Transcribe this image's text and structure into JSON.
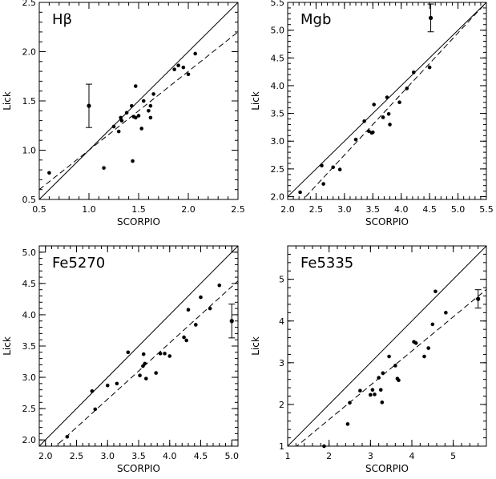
{
  "chart_data": [
    {
      "type": "scatter",
      "panel_label": "Hβ",
      "xlabel": "SCORPIO",
      "ylabel": "Lick",
      "xlim": [
        0.5,
        2.5
      ],
      "ylim": [
        0.5,
        2.5
      ],
      "xticks": [
        "0.5",
        "1.0",
        "1.5",
        "2.0",
        "2.5"
      ],
      "yticks": [
        "0.5",
        "1.0",
        "1.5",
        "2.0",
        "2.5"
      ],
      "x": [
        0.6,
        1.15,
        1.25,
        1.3,
        1.32,
        1.33,
        1.38,
        1.43,
        1.44,
        1.45,
        1.47,
        1.47,
        1.5,
        1.53,
        1.55,
        1.6,
        1.62,
        1.62,
        1.65,
        1.86,
        1.9,
        1.95,
        2.0,
        2.07
      ],
      "y": [
        0.77,
        0.82,
        1.24,
        1.19,
        1.33,
        1.3,
        1.38,
        1.45,
        0.89,
        1.34,
        1.65,
        1.33,
        1.35,
        1.22,
        1.5,
        1.4,
        1.33,
        1.45,
        1.57,
        1.82,
        1.86,
        1.84,
        1.77,
        1.98
      ],
      "error_bar": {
        "x": 1.0,
        "y": 1.45,
        "err": 0.22
      },
      "lines": [
        {
          "style": "solid",
          "slope": 1.0,
          "intercept": 0.0
        },
        {
          "style": "dashed",
          "slope": 0.8,
          "intercept": 0.2
        }
      ]
    },
    {
      "type": "scatter",
      "panel_label": "Mgb",
      "xlabel": "SCORPIO",
      "ylabel": "Lick",
      "xlim": [
        2.0,
        5.5
      ],
      "ylim": [
        1.95,
        5.5
      ],
      "xticks": [
        "2.0",
        "2.5",
        "3.0",
        "3.5",
        "4.0",
        "4.5",
        "5.0",
        "5.5"
      ],
      "yticks": [
        "2.0",
        "2.5",
        "3.0",
        "3.5",
        "4.0",
        "4.5",
        "5.0",
        "5.5"
      ],
      "x": [
        2.22,
        2.6,
        2.63,
        2.8,
        2.92,
        3.2,
        3.35,
        3.43,
        3.48,
        3.5,
        3.52,
        3.68,
        3.75,
        3.78,
        3.8,
        3.97,
        4.1,
        4.22,
        4.5
      ],
      "y": [
        2.08,
        2.56,
        2.23,
        2.53,
        2.49,
        3.03,
        3.36,
        3.18,
        3.15,
        3.16,
        3.66,
        3.43,
        3.79,
        3.49,
        3.3,
        3.7,
        3.95,
        4.24,
        4.33
      ],
      "error_bar": {
        "x": 4.52,
        "y": 5.22,
        "err": 0.25
      },
      "lines": [
        {
          "style": "solid",
          "slope": 1.0,
          "intercept": 0.0
        },
        {
          "style": "dashed",
          "slope": 1.1,
          "intercept": -0.55
        }
      ]
    },
    {
      "type": "scatter",
      "panel_label": "Fe5270",
      "xlabel": "SCORPIO",
      "ylabel": "Lick",
      "xlim": [
        1.9,
        5.1
      ],
      "ylim": [
        1.9,
        5.1
      ],
      "xticks": [
        "2.0",
        "2.5",
        "3.0",
        "3.5",
        "4.0",
        "4.5",
        "5.0"
      ],
      "yticks": [
        "2.0",
        "2.5",
        "3.0",
        "3.5",
        "4.0",
        "4.5",
        "5.0"
      ],
      "x": [
        2.35,
        2.75,
        2.8,
        3.0,
        3.15,
        3.33,
        3.52,
        3.57,
        3.58,
        3.6,
        3.62,
        3.78,
        3.85,
        3.92,
        4.0,
        4.23,
        4.27,
        4.3,
        4.42,
        4.5,
        4.65,
        4.8
      ],
      "y": [
        2.05,
        2.78,
        2.49,
        2.87,
        2.9,
        3.4,
        3.03,
        3.18,
        3.37,
        3.22,
        2.98,
        3.07,
        3.38,
        3.38,
        3.34,
        3.64,
        3.59,
        4.08,
        3.84,
        4.28,
        4.1,
        4.47
      ],
      "error_bar": {
        "x": 5.0,
        "y": 3.9,
        "err": 0.27
      },
      "lines": [
        {
          "style": "solid",
          "slope": 1.0,
          "intercept": 0.0
        },
        {
          "style": "dashed",
          "slope": 0.9,
          "intercept": -0.05
        }
      ]
    },
    {
      "type": "scatter",
      "panel_label": "Fe5335",
      "xlabel": "SCORPIO",
      "ylabel": "Lick",
      "xlim": [
        1.0,
        5.8
      ],
      "ylim": [
        1.0,
        5.8
      ],
      "xticks": [
        "1",
        "2",
        "3",
        "4",
        "5"
      ],
      "yticks": [
        "1",
        "2",
        "3",
        "4",
        "5"
      ],
      "x": [
        1.88,
        2.45,
        2.5,
        2.75,
        3.0,
        3.05,
        3.1,
        3.2,
        3.25,
        3.28,
        3.3,
        3.45,
        3.6,
        3.65,
        3.68,
        4.05,
        4.1,
        4.3,
        4.4,
        4.5,
        4.57,
        4.82
      ],
      "y": [
        1.0,
        1.53,
        2.04,
        2.33,
        2.23,
        2.35,
        2.24,
        2.64,
        2.35,
        2.05,
        2.75,
        3.15,
        2.93,
        2.62,
        2.58,
        3.5,
        3.47,
        3.15,
        3.35,
        3.92,
        4.71,
        4.2
      ],
      "error_bar": {
        "x": 5.6,
        "y": 4.53,
        "err": 0.22
      },
      "lines": [
        {
          "style": "solid",
          "slope": 1.0,
          "intercept": 0.0
        },
        {
          "style": "dashed",
          "slope": 0.82,
          "intercept": 0.0
        }
      ]
    }
  ]
}
